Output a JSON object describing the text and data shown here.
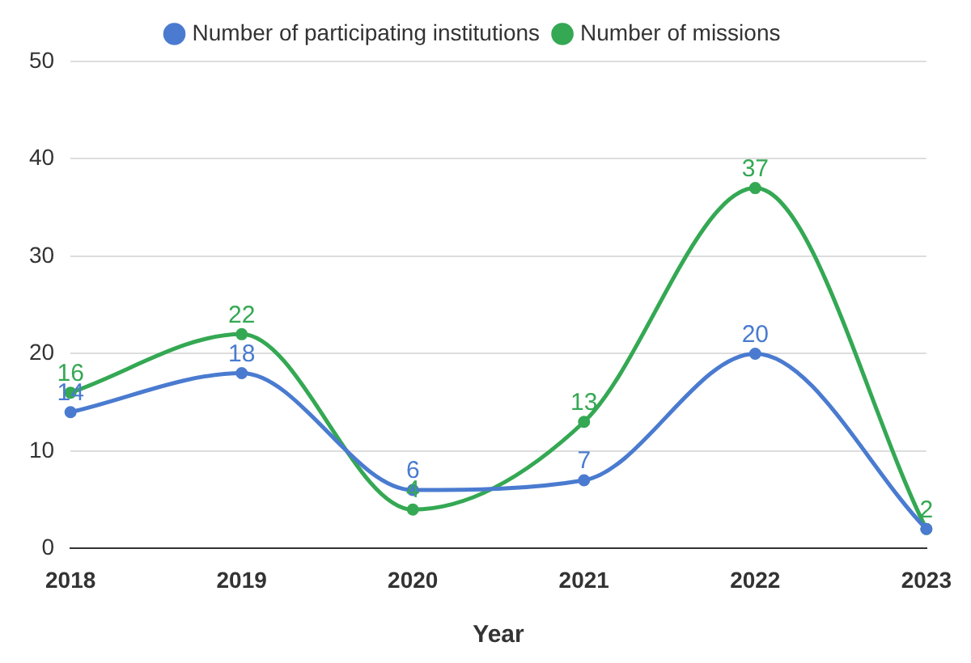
{
  "chart_data": {
    "type": "line",
    "xlabel": "Year",
    "categories": [
      "2018",
      "2019",
      "2020",
      "2021",
      "2022",
      "2023"
    ],
    "series": [
      {
        "name": "Number of participating institutions",
        "color": "#4a7bd0",
        "values": [
          14,
          18,
          6,
          7,
          20,
          2
        ],
        "value_labels": [
          "14",
          "18",
          "6",
          "7",
          "20",
          null
        ]
      },
      {
        "name": "Number of missions",
        "color": "#34a853",
        "values": [
          16,
          22,
          4,
          13,
          37,
          2
        ],
        "value_labels": [
          "16",
          "22",
          "4",
          "13",
          "37",
          "2"
        ]
      }
    ],
    "ylim": [
      0,
      50
    ],
    "yticks": [
      0,
      10,
      20,
      30,
      40,
      50
    ],
    "grid": "y",
    "legend": "top",
    "marker": "circle",
    "line_style": "solid"
  }
}
